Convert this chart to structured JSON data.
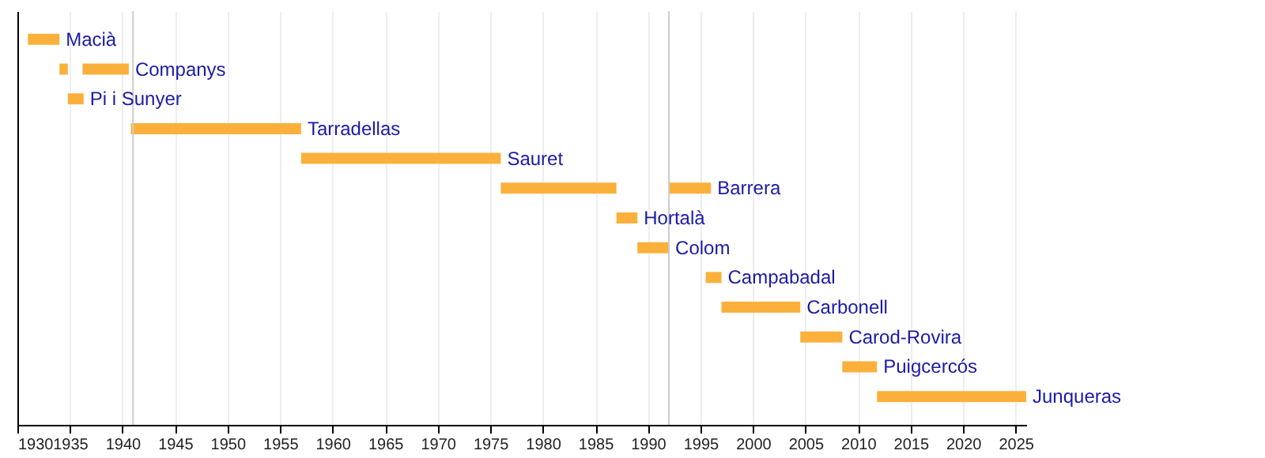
{
  "chart_data": {
    "type": "bar",
    "orientation": "horizontal",
    "categories": [
      "Macià",
      "Companys",
      "Pi i Sunyer",
      "Tarradellas",
      "Sauret",
      "Barrera",
      "Hortalà",
      "Colom",
      "Campabadal",
      "Carbonell",
      "Carod-Rovira",
      "Puigcercós",
      "Junqueras"
    ],
    "series": [
      {
        "color": "#fbb03b",
        "base": [
          1931,
          1934,
          1934.8,
          1940.8,
          1957,
          1976,
          1987,
          1989,
          1995.5,
          1997,
          2004.5,
          2008.5,
          2011.8
        ],
        "values": [
          3,
          0.8,
          1.5,
          16.2,
          19,
          11,
          2,
          3,
          1.5,
          7.5,
          4,
          3.3,
          14.2
        ]
      },
      {
        "color": "#fbb03b",
        "base": [
          null,
          1936.2,
          null,
          null,
          null,
          1992,
          null,
          null,
          null,
          null,
          null,
          null,
          null
        ],
        "values": [
          null,
          4.4,
          null,
          null,
          null,
          4,
          null,
          null,
          null,
          null,
          null,
          null,
          null
        ]
      }
    ],
    "xlim": [
      1930,
      2026
    ],
    "xticks": [
      1930,
      1935,
      1940,
      1945,
      1950,
      1955,
      1960,
      1965,
      1970,
      1975,
      1980,
      1985,
      1990,
      1995,
      2000,
      2005,
      2010,
      2015,
      2020,
      2025
    ],
    "ref_lines": [
      {
        "axis": "x",
        "value": 1941,
        "color": "#cccccc"
      },
      {
        "axis": "x",
        "value": 1992,
        "color": "#cccccc"
      }
    ],
    "grid": "x",
    "tick_labels": "x"
  }
}
